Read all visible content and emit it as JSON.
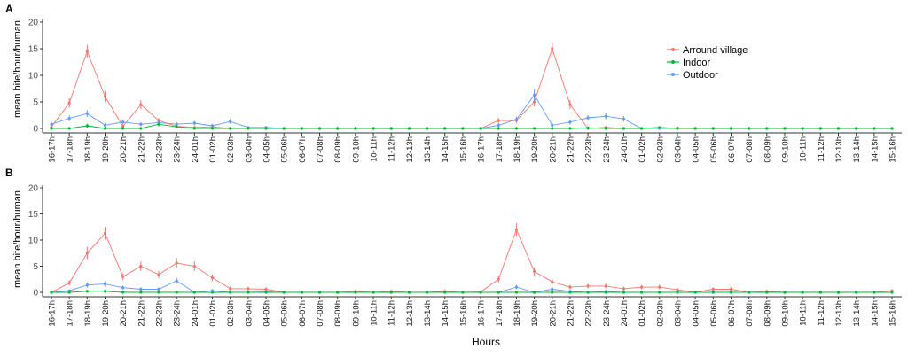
{
  "chart_data": {
    "type": "line",
    "xlabel": "Hours",
    "categories": [
      "16-17h",
      "17-18h",
      "18-19h",
      "19-20h",
      "20-21h",
      "21-22h",
      "22-23h",
      "23-24h",
      "24-01h",
      "01-02h",
      "02-03h",
      "03-04h",
      "04-05h",
      "05-06h",
      "06-07h",
      "07-08h",
      "08-09h",
      "09-10h",
      "10-11h",
      "11-12h",
      "12-13h",
      "13-14h",
      "14-15h",
      "15-16h",
      "16-17h",
      "17-18h",
      "18-19h",
      "19-20h",
      "20-21h",
      "21-22h",
      "22-23h",
      "23-24h",
      "24-01h",
      "01-02h",
      "02-03h",
      "03-04h",
      "04-05h",
      "05-06h",
      "06-07h",
      "07-08h",
      "08-09h",
      "09-10h",
      "10-11h",
      "11-12h",
      "12-13h",
      "13-14h",
      "14-15h",
      "15-16h"
    ],
    "ylim": [
      0,
      20
    ],
    "yticks": [
      "0",
      "5",
      "10",
      "15",
      "20"
    ],
    "legend": {
      "position": "top-right",
      "entries": [
        "Arround village",
        "Indoor",
        "Outdoor"
      ]
    },
    "colors": {
      "Arround village": "#f8766d",
      "Indoor": "#00ba38",
      "Outdoor": "#619cff"
    },
    "panels": [
      {
        "label": "A",
        "ylabel": "mean bite/hour/human",
        "series": [
          {
            "name": "Arround village",
            "values": [
              0.3,
              4.8,
              14.5,
              6,
              0.4,
              4.5,
              1.5,
              0.4,
              0.2,
              0.3,
              0,
              0,
              0,
              0,
              0,
              0,
              0,
              0,
              0,
              0,
              0,
              0,
              0,
              0,
              0,
              1.5,
              1.5,
              5,
              15,
              4.5,
              0,
              0.2,
              0,
              0,
              0,
              0.1,
              0,
              0,
              0,
              0,
              0,
              0,
              0,
              0,
              0,
              0,
              0,
              0
            ]
          },
          {
            "name": "Indoor",
            "values": [
              0,
              0,
              0.5,
              0,
              0,
              0,
              0.8,
              0.3,
              0,
              0,
              0,
              0,
              0,
              0,
              0,
              0,
              0,
              0,
              0,
              0,
              0,
              0,
              0,
              0,
              0,
              0,
              0,
              0,
              0,
              0,
              0.1,
              0,
              0,
              0,
              0.2,
              0,
              0,
              0,
              0,
              0,
              0,
              0,
              0,
              0,
              0,
              0,
              0,
              0
            ]
          },
          {
            "name": "Outdoor",
            "values": [
              0.8,
              1.9,
              2.8,
              0.6,
              1.2,
              0.8,
              1.1,
              0.8,
              1,
              0.5,
              1.3,
              0.2,
              0.2,
              0,
              0,
              0,
              0,
              0,
              0,
              0,
              0,
              0,
              0,
              0,
              0,
              0.6,
              1.7,
              6.3,
              0.6,
              1.2,
              2,
              2.3,
              1.8,
              0,
              0,
              0,
              0,
              0,
              0,
              0,
              0,
              0,
              0,
              0,
              0,
              0,
              0,
              0
            ]
          }
        ]
      },
      {
        "label": "B",
        "ylabel": "mean bite/hour/human",
        "series": [
          {
            "name": "Arround village",
            "values": [
              0,
              1.8,
              7.5,
              11.3,
              3,
              5,
              3.4,
              5.6,
              5,
              2.8,
              0.7,
              0.7,
              0.6,
              0,
              0,
              0,
              0,
              0.2,
              0,
              0.2,
              0,
              0,
              0.2,
              0,
              0.1,
              2.5,
              12,
              4,
              2,
              1,
              1.2,
              1.2,
              0.7,
              1,
              1,
              0.5,
              0,
              0.6,
              0.6,
              0,
              0.2,
              0,
              0,
              0,
              0,
              0,
              0,
              0.3
            ]
          },
          {
            "name": "Indoor",
            "values": [
              0,
              0,
              0.2,
              0.2,
              0,
              0,
              0,
              0,
              0,
              0,
              0,
              0,
              0,
              0,
              0,
              0,
              0,
              0,
              0,
              0,
              0,
              0,
              0,
              0,
              0,
              0,
              0,
              0,
              0,
              0,
              0,
              0,
              0,
              0,
              0,
              0,
              0,
              0,
              0,
              0,
              0,
              0,
              0,
              0,
              0,
              0,
              0,
              0
            ]
          },
          {
            "name": "Outdoor",
            "values": [
              0,
              0.3,
              1.4,
              1.6,
              0.9,
              0.6,
              0.6,
              2.2,
              0,
              0.3,
              0,
              0,
              0.1,
              0,
              0,
              0,
              0,
              0,
              0,
              0,
              0,
              0,
              0,
              0,
              0,
              0,
              1,
              0,
              0.6,
              0.2,
              0,
              0.2,
              0,
              0,
              0,
              0,
              0,
              0,
              0,
              0,
              0,
              0,
              0,
              0,
              0,
              0,
              0,
              0
            ]
          }
        ]
      }
    ]
  }
}
